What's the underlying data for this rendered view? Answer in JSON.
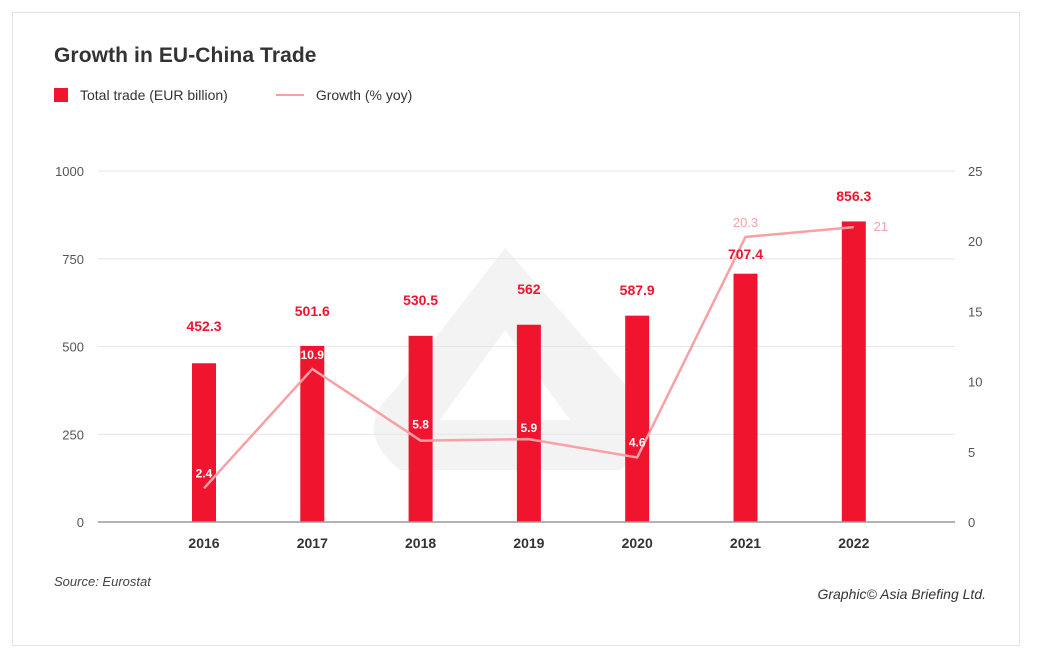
{
  "title": "Growth in EU-China Trade",
  "legend": {
    "bar_label": "Total trade (EUR billion)",
    "line_label": "Growth (% yoy)"
  },
  "source": "Source: Eurostat",
  "credit": "Graphic© Asia Briefing Ltd.",
  "colors": {
    "bar": "#f0142f",
    "line": "#f7a1a6"
  },
  "chart_data": {
    "type": "bar",
    "categories": [
      "2016",
      "2017",
      "2018",
      "2019",
      "2020",
      "2021",
      "2022"
    ],
    "series": [
      {
        "name": "Total trade (EUR billion)",
        "type": "bar",
        "axis": "left",
        "values": [
          452.3,
          501.6,
          530.5,
          562,
          587.9,
          707.4,
          856.3
        ]
      },
      {
        "name": "Growth (% yoy)",
        "type": "line",
        "axis": "right",
        "values": [
          2.4,
          10.9,
          5.8,
          5.9,
          4.6,
          20.3,
          21
        ]
      }
    ],
    "ylim_left": [
      0,
      1000
    ],
    "yticks_left": [
      "0",
      "250",
      "500",
      "750",
      "1000"
    ],
    "ylim_right": [
      0,
      25
    ],
    "yticks_right": [
      "0",
      "5",
      "10",
      "15",
      "20",
      "25"
    ],
    "grid": true,
    "legend_position": "top-left",
    "title": "Growth in EU-China Trade"
  }
}
